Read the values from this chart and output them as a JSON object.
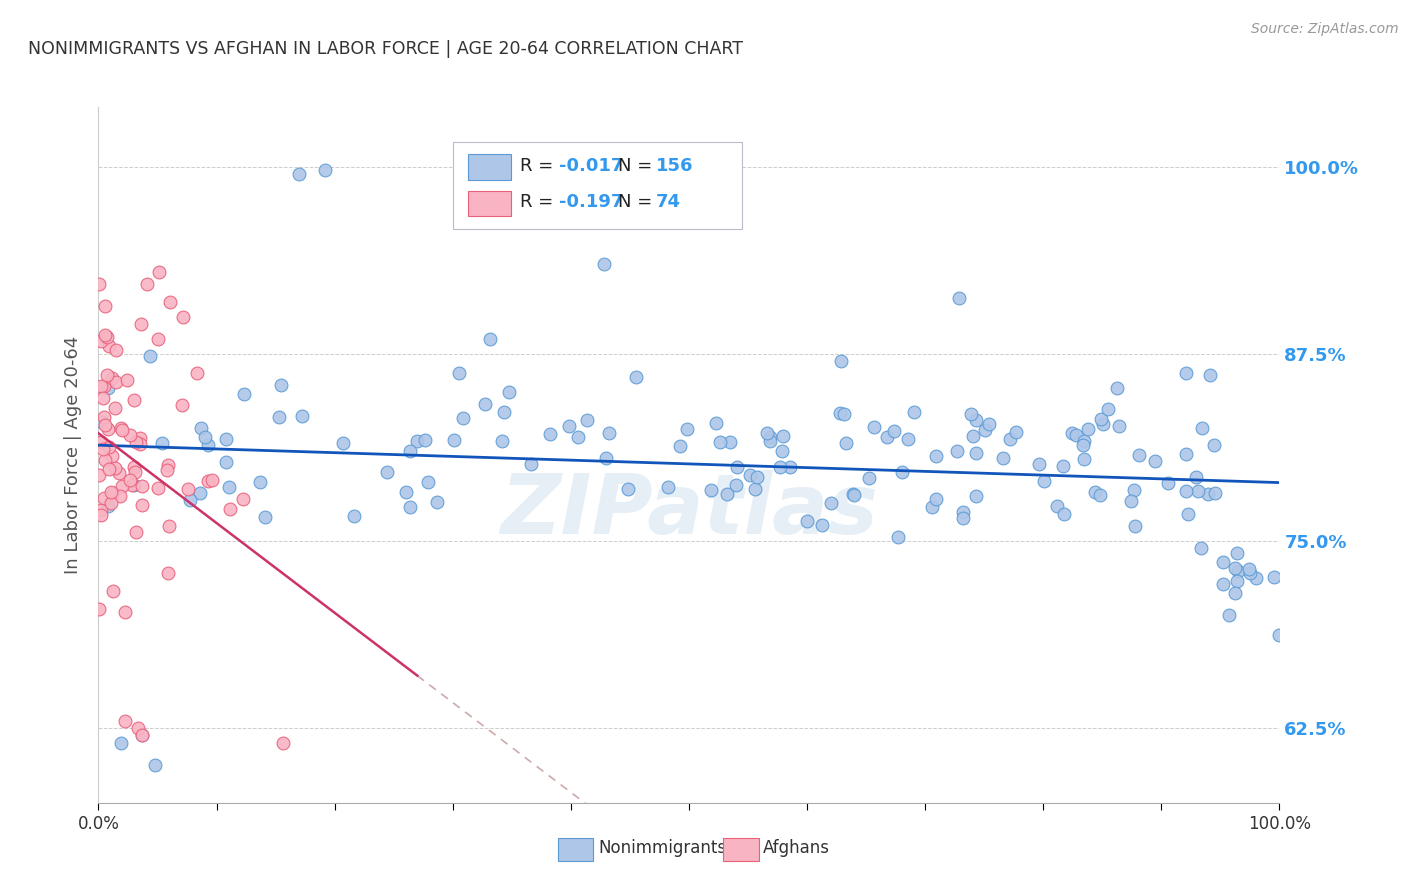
{
  "title": "NONIMMIGRANTS VS AFGHAN IN LABOR FORCE | AGE 20-64 CORRELATION CHART",
  "source": "Source: ZipAtlas.com",
  "ylabel": "In Labor Force | Age 20-64",
  "xlim": [
    0.0,
    1.0
  ],
  "ylim": [
    0.575,
    1.04
  ],
  "yticks": [
    0.625,
    0.75,
    0.875,
    1.0
  ],
  "ytick_labels": [
    "62.5%",
    "75.0%",
    "87.5%",
    "100.0%"
  ],
  "xticks": [
    0.0,
    0.1,
    0.2,
    0.3,
    0.4,
    0.5,
    0.6,
    0.7,
    0.8,
    0.9,
    1.0
  ],
  "xtick_labels": [
    "0.0%",
    "",
    "",
    "",
    "",
    "",
    "",
    "",
    "",
    "",
    "100.0%"
  ],
  "nonimm_color": "#aec6e8",
  "afghan_color": "#f9b4c3",
  "nonimm_edge": "#5b9bd5",
  "afghan_edge": "#e8607a",
  "trend_nonimm_color": "#1155bb",
  "trend_afghan_solid_color": "#cc3366",
  "trend_afghan_dash_color": "#ccaaaa",
  "legend_R_nonimm": "-0.017",
  "legend_N_nonimm": "156",
  "legend_R_afghan": "-0.197",
  "legend_N_afghan": "74",
  "watermark": "ZIPatlas",
  "bg_color": "#ffffff",
  "grid_color": "#c8c8c8",
  "title_color": "#333333",
  "axis_label_color": "#555555",
  "right_tick_color": "#3399ee",
  "source_color": "#999999",
  "seed": 42,
  "nonimm_n": 156,
  "afghan_n": 74
}
